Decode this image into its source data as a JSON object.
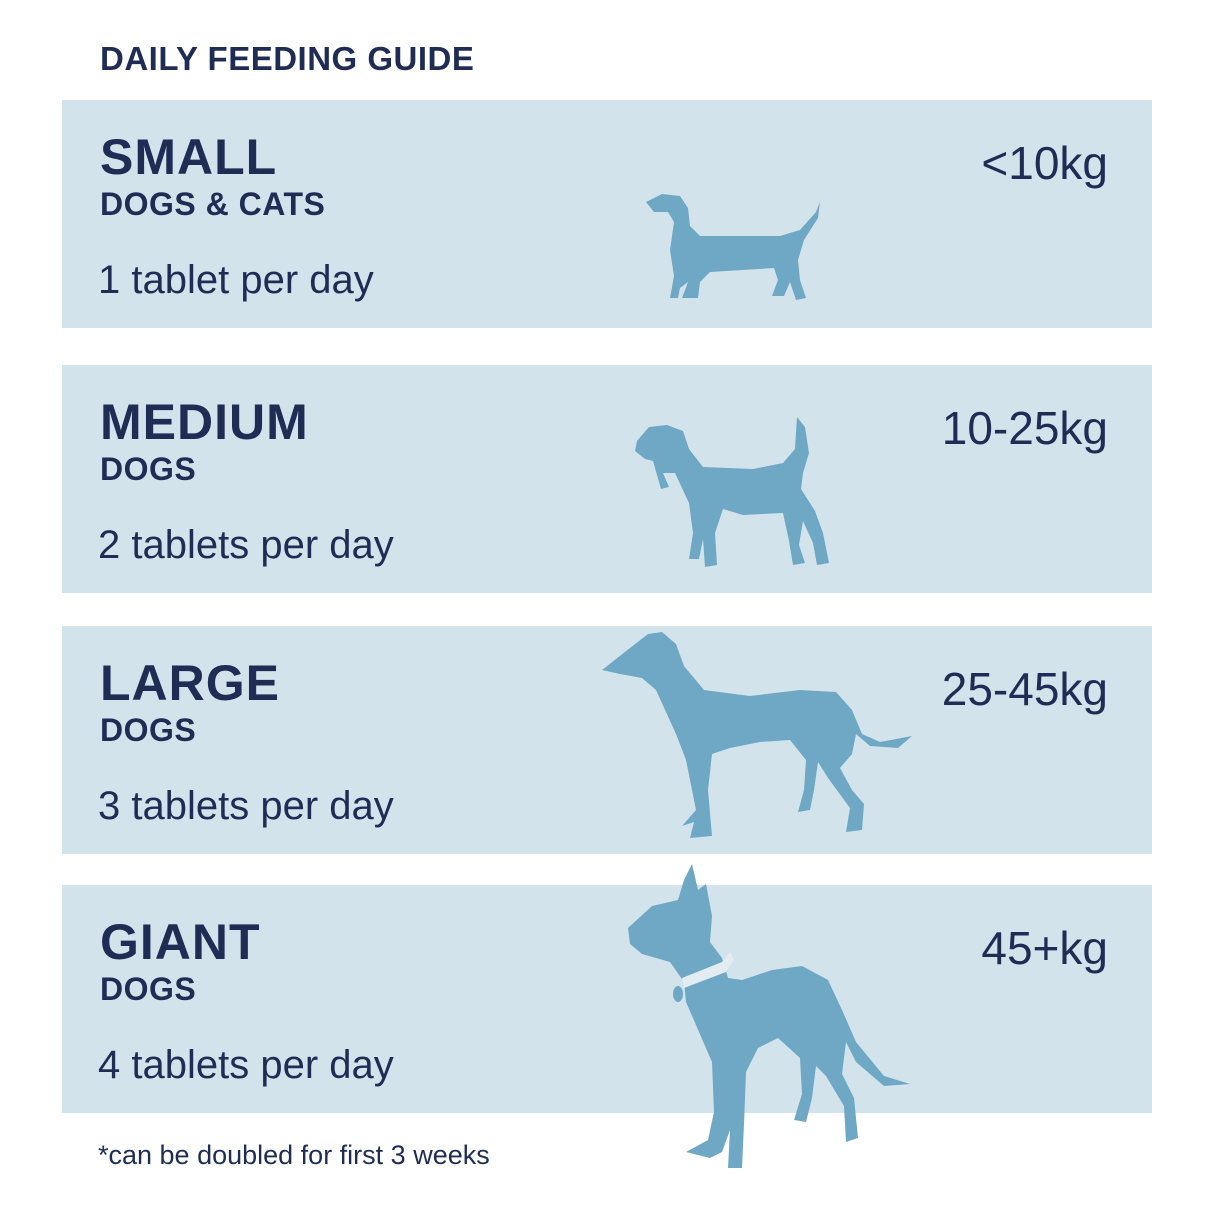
{
  "title": "DAILY FEEDING GUIDE",
  "rows": [
    {
      "size": "SMALL",
      "sub": "DOGS & CATS",
      "dose": "1 tablet per day",
      "weight": "<10kg",
      "icon": "dachshund-icon"
    },
    {
      "size": "MEDIUM",
      "sub": "DOGS",
      "dose": "2 tablets per day",
      "weight": "10-25kg",
      "icon": "beagle-icon"
    },
    {
      "size": "LARGE",
      "sub": "DOGS",
      "dose": "3 tablets per day",
      "weight": "25-45kg",
      "icon": "greyhound-icon"
    },
    {
      "size": "GIANT",
      "sub": "DOGS",
      "dose": "4 tablets per day",
      "weight": "45+kg",
      "icon": "great-dane-icon"
    }
  ],
  "footnote": "*can be doubled for first 3 weeks",
  "colors": {
    "panel": "#d3e3ec",
    "text": "#1f2d55",
    "dog": "#6fa8c4"
  }
}
